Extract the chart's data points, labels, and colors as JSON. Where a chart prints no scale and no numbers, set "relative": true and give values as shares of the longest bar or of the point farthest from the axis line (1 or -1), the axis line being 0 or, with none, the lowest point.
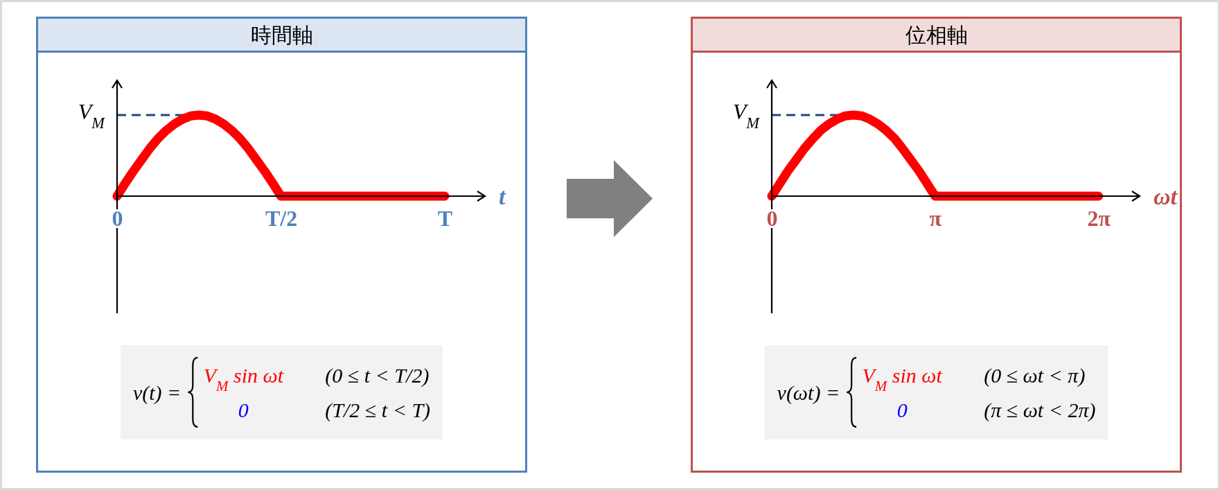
{
  "chart_data": [
    {
      "type": "line",
      "title": "時間軸",
      "xlabel": "t",
      "categories": [
        "0",
        null,
        null,
        null,
        null,
        null,
        null,
        null,
        null,
        null,
        null,
        null,
        null,
        null,
        null,
        null,
        null,
        null,
        null,
        null,
        "T/2",
        null,
        null,
        null,
        null,
        null,
        null,
        null,
        null,
        null,
        null,
        null,
        null,
        null,
        null,
        null,
        null,
        null,
        null,
        null,
        "T"
      ],
      "values": [
        0,
        0.16,
        0.31,
        0.45,
        0.59,
        0.71,
        0.81,
        0.89,
        0.95,
        0.99,
        1,
        0.99,
        0.95,
        0.89,
        0.81,
        0.71,
        0.59,
        0.45,
        0.31,
        0.16,
        0,
        0,
        0,
        0,
        0,
        0,
        0,
        0,
        0,
        0,
        0,
        0,
        0,
        0,
        0,
        0,
        0,
        0,
        0,
        0,
        0
      ],
      "color": "#ff0000",
      "relative": true,
      "ref_lines": [
        {
          "axis": "y",
          "value": 1,
          "label": "V$_{M}$",
          "color": "#1f497d",
          "line_style": "dashed"
        }
      ],
      "annotations": [
        "v(t) =",
        "V$_{M}$ sin ωt",
        "(0 ≤ t < T/2)",
        "0",
        "(T/2 ≤ t < T)"
      ]
    },
    {
      "type": "line",
      "title": "位相軸",
      "xlabel": "ωt",
      "x": [
        0,
        0.16,
        0.31,
        0.47,
        0.63,
        0.79,
        0.94,
        1.1,
        1.26,
        1.41,
        1.57,
        1.73,
        1.88,
        2.04,
        2.2,
        2.36,
        2.51,
        2.67,
        2.83,
        2.98,
        3.14,
        6.28
      ],
      "values": [
        0,
        0.16,
        0.31,
        0.45,
        0.59,
        0.71,
        0.81,
        0.89,
        0.95,
        0.99,
        1,
        0.99,
        0.95,
        0.89,
        0.81,
        0.71,
        0.59,
        0.45,
        0.31,
        0.16,
        0,
        0
      ],
      "color": "#ff0000",
      "relative": true,
      "xlim": [
        0,
        7.07
      ],
      "xticks": [
        0,
        {
          "value": 3.14,
          "label": "π"
        },
        {
          "value": 6.28,
          "label": "2π"
        }
      ],
      "ref_lines": [
        {
          "axis": "y",
          "value": 1,
          "label": "V$_{M}$",
          "color": "#1f497d",
          "line_style": "dashed"
        }
      ],
      "annotations": [
        "v(ωt) =",
        "V$_{M}$ sin ωt",
        "(0 ≤ ωt < π)",
        "0",
        "(π ≤ ωt < 2π)"
      ]
    }
  ]
}
